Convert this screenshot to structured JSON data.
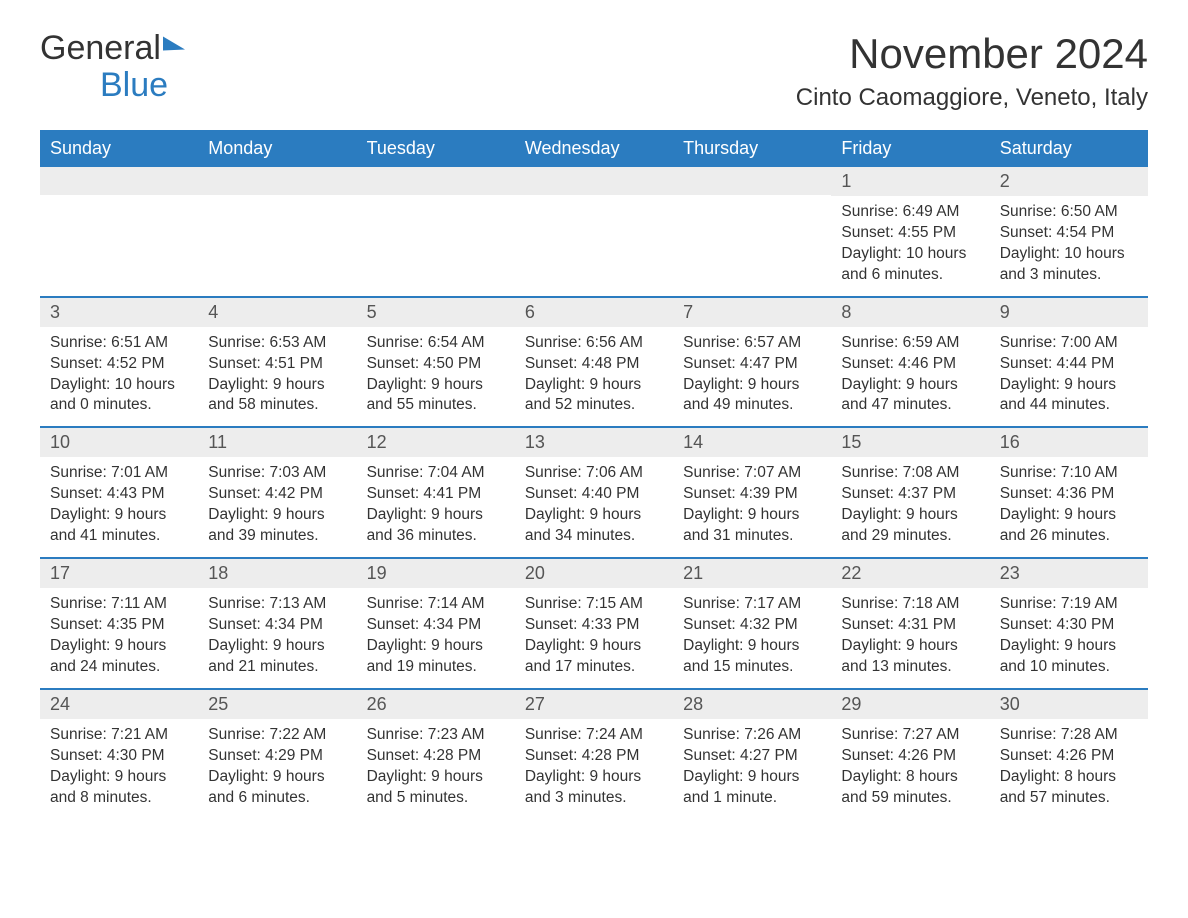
{
  "brand": {
    "part1": "General",
    "part2": "Blue"
  },
  "title": "November 2024",
  "location": "Cinto Caomaggiore, Veneto, Italy",
  "colors": {
    "header_bg": "#2b7cc0",
    "header_text": "#ffffff",
    "daynum_bg": "#ededed",
    "row_border": "#2b7cc0",
    "body_text": "#333333",
    "page_bg": "#ffffff"
  },
  "weekdays": [
    "Sunday",
    "Monday",
    "Tuesday",
    "Wednesday",
    "Thursday",
    "Friday",
    "Saturday"
  ],
  "weeks": [
    [
      null,
      null,
      null,
      null,
      null,
      {
        "n": "1",
        "sunrise": "Sunrise: 6:49 AM",
        "sunset": "Sunset: 4:55 PM",
        "daylight": "Daylight: 10 hours and 6 minutes."
      },
      {
        "n": "2",
        "sunrise": "Sunrise: 6:50 AM",
        "sunset": "Sunset: 4:54 PM",
        "daylight": "Daylight: 10 hours and 3 minutes."
      }
    ],
    [
      {
        "n": "3",
        "sunrise": "Sunrise: 6:51 AM",
        "sunset": "Sunset: 4:52 PM",
        "daylight": "Daylight: 10 hours and 0 minutes."
      },
      {
        "n": "4",
        "sunrise": "Sunrise: 6:53 AM",
        "sunset": "Sunset: 4:51 PM",
        "daylight": "Daylight: 9 hours and 58 minutes."
      },
      {
        "n": "5",
        "sunrise": "Sunrise: 6:54 AM",
        "sunset": "Sunset: 4:50 PM",
        "daylight": "Daylight: 9 hours and 55 minutes."
      },
      {
        "n": "6",
        "sunrise": "Sunrise: 6:56 AM",
        "sunset": "Sunset: 4:48 PM",
        "daylight": "Daylight: 9 hours and 52 minutes."
      },
      {
        "n": "7",
        "sunrise": "Sunrise: 6:57 AM",
        "sunset": "Sunset: 4:47 PM",
        "daylight": "Daylight: 9 hours and 49 minutes."
      },
      {
        "n": "8",
        "sunrise": "Sunrise: 6:59 AM",
        "sunset": "Sunset: 4:46 PM",
        "daylight": "Daylight: 9 hours and 47 minutes."
      },
      {
        "n": "9",
        "sunrise": "Sunrise: 7:00 AM",
        "sunset": "Sunset: 4:44 PM",
        "daylight": "Daylight: 9 hours and 44 minutes."
      }
    ],
    [
      {
        "n": "10",
        "sunrise": "Sunrise: 7:01 AM",
        "sunset": "Sunset: 4:43 PM",
        "daylight": "Daylight: 9 hours and 41 minutes."
      },
      {
        "n": "11",
        "sunrise": "Sunrise: 7:03 AM",
        "sunset": "Sunset: 4:42 PM",
        "daylight": "Daylight: 9 hours and 39 minutes."
      },
      {
        "n": "12",
        "sunrise": "Sunrise: 7:04 AM",
        "sunset": "Sunset: 4:41 PM",
        "daylight": "Daylight: 9 hours and 36 minutes."
      },
      {
        "n": "13",
        "sunrise": "Sunrise: 7:06 AM",
        "sunset": "Sunset: 4:40 PM",
        "daylight": "Daylight: 9 hours and 34 minutes."
      },
      {
        "n": "14",
        "sunrise": "Sunrise: 7:07 AM",
        "sunset": "Sunset: 4:39 PM",
        "daylight": "Daylight: 9 hours and 31 minutes."
      },
      {
        "n": "15",
        "sunrise": "Sunrise: 7:08 AM",
        "sunset": "Sunset: 4:37 PM",
        "daylight": "Daylight: 9 hours and 29 minutes."
      },
      {
        "n": "16",
        "sunrise": "Sunrise: 7:10 AM",
        "sunset": "Sunset: 4:36 PM",
        "daylight": "Daylight: 9 hours and 26 minutes."
      }
    ],
    [
      {
        "n": "17",
        "sunrise": "Sunrise: 7:11 AM",
        "sunset": "Sunset: 4:35 PM",
        "daylight": "Daylight: 9 hours and 24 minutes."
      },
      {
        "n": "18",
        "sunrise": "Sunrise: 7:13 AM",
        "sunset": "Sunset: 4:34 PM",
        "daylight": "Daylight: 9 hours and 21 minutes."
      },
      {
        "n": "19",
        "sunrise": "Sunrise: 7:14 AM",
        "sunset": "Sunset: 4:34 PM",
        "daylight": "Daylight: 9 hours and 19 minutes."
      },
      {
        "n": "20",
        "sunrise": "Sunrise: 7:15 AM",
        "sunset": "Sunset: 4:33 PM",
        "daylight": "Daylight: 9 hours and 17 minutes."
      },
      {
        "n": "21",
        "sunrise": "Sunrise: 7:17 AM",
        "sunset": "Sunset: 4:32 PM",
        "daylight": "Daylight: 9 hours and 15 minutes."
      },
      {
        "n": "22",
        "sunrise": "Sunrise: 7:18 AM",
        "sunset": "Sunset: 4:31 PM",
        "daylight": "Daylight: 9 hours and 13 minutes."
      },
      {
        "n": "23",
        "sunrise": "Sunrise: 7:19 AM",
        "sunset": "Sunset: 4:30 PM",
        "daylight": "Daylight: 9 hours and 10 minutes."
      }
    ],
    [
      {
        "n": "24",
        "sunrise": "Sunrise: 7:21 AM",
        "sunset": "Sunset: 4:30 PM",
        "daylight": "Daylight: 9 hours and 8 minutes."
      },
      {
        "n": "25",
        "sunrise": "Sunrise: 7:22 AM",
        "sunset": "Sunset: 4:29 PM",
        "daylight": "Daylight: 9 hours and 6 minutes."
      },
      {
        "n": "26",
        "sunrise": "Sunrise: 7:23 AM",
        "sunset": "Sunset: 4:28 PM",
        "daylight": "Daylight: 9 hours and 5 minutes."
      },
      {
        "n": "27",
        "sunrise": "Sunrise: 7:24 AM",
        "sunset": "Sunset: 4:28 PM",
        "daylight": "Daylight: 9 hours and 3 minutes."
      },
      {
        "n": "28",
        "sunrise": "Sunrise: 7:26 AM",
        "sunset": "Sunset: 4:27 PM",
        "daylight": "Daylight: 9 hours and 1 minute."
      },
      {
        "n": "29",
        "sunrise": "Sunrise: 7:27 AM",
        "sunset": "Sunset: 4:26 PM",
        "daylight": "Daylight: 8 hours and 59 minutes."
      },
      {
        "n": "30",
        "sunrise": "Sunrise: 7:28 AM",
        "sunset": "Sunset: 4:26 PM",
        "daylight": "Daylight: 8 hours and 57 minutes."
      }
    ]
  ]
}
